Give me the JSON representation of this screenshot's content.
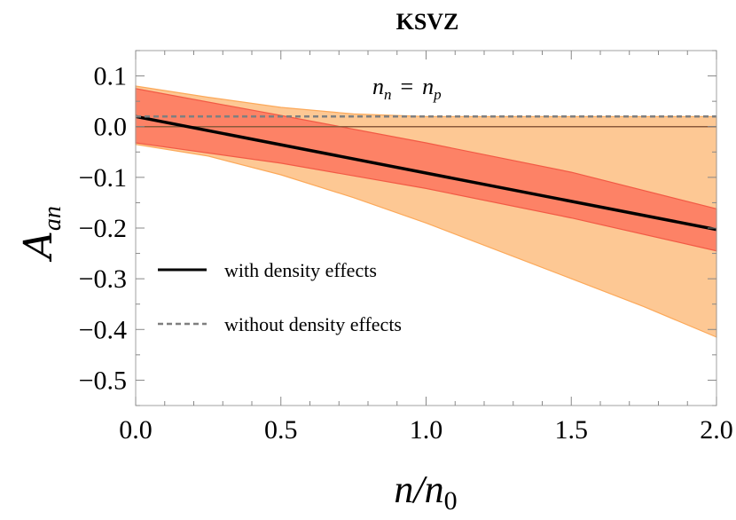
{
  "chart_data": {
    "type": "line",
    "title": "KSVZ",
    "xlabel": "n/n",
    "xlabel_sub": "0",
    "ylabel": "A",
    "ylabel_sub": "an",
    "annotation": {
      "left": "n",
      "left_sub": "n",
      "eq": "=",
      "right": "n",
      "right_sub": "p"
    },
    "xlim": [
      0.0,
      2.0
    ],
    "ylim": [
      -0.55,
      0.15
    ],
    "xticks": [
      "0.0",
      "0.5",
      "1.0",
      "1.5",
      "2.0"
    ],
    "yticks": [
      "0.1",
      "0.0",
      "−0.1",
      "−0.2",
      "−0.3",
      "−0.4",
      "−0.5"
    ],
    "ytick_values": [
      0.1,
      0.0,
      -0.1,
      -0.2,
      -0.3,
      -0.4,
      -0.5
    ],
    "xtick_values": [
      0.0,
      0.5,
      1.0,
      1.5,
      2.0
    ],
    "grid": false,
    "legend_position": "center-left",
    "series": [
      {
        "name": "with density effects",
        "style": "solid",
        "color": "#000000",
        "x": [
          0.0,
          2.0
        ],
        "y": [
          0.02,
          -0.203
        ]
      },
      {
        "name": "without density effects",
        "style": "dashed",
        "color": "#7f7f7f",
        "x": [
          0.0,
          2.0
        ],
        "y": [
          0.02,
          0.02
        ]
      }
    ],
    "bands": [
      {
        "color": "#fdc894",
        "stroke": "#fca95a",
        "x": [
          0.0,
          0.25,
          0.5,
          0.75,
          1.0,
          1.25,
          1.5,
          1.75,
          2.0
        ],
        "upper": [
          0.08,
          0.058,
          0.038,
          0.025,
          0.02,
          0.02,
          0.02,
          0.02,
          0.02
        ],
        "lower": [
          -0.035,
          -0.058,
          -0.095,
          -0.14,
          -0.19,
          -0.245,
          -0.3,
          -0.355,
          -0.415
        ]
      },
      {
        "color": "#fd8266",
        "stroke": "#f25a45",
        "x": [
          0.0,
          0.5,
          1.0,
          1.5,
          2.0
        ],
        "upper": [
          0.075,
          0.022,
          -0.032,
          -0.09,
          -0.162
        ],
        "lower": [
          -0.032,
          -0.072,
          -0.122,
          -0.18,
          -0.245
        ]
      }
    ],
    "reference_line": {
      "y": 0.0,
      "color": "#8a5a3c"
    }
  }
}
